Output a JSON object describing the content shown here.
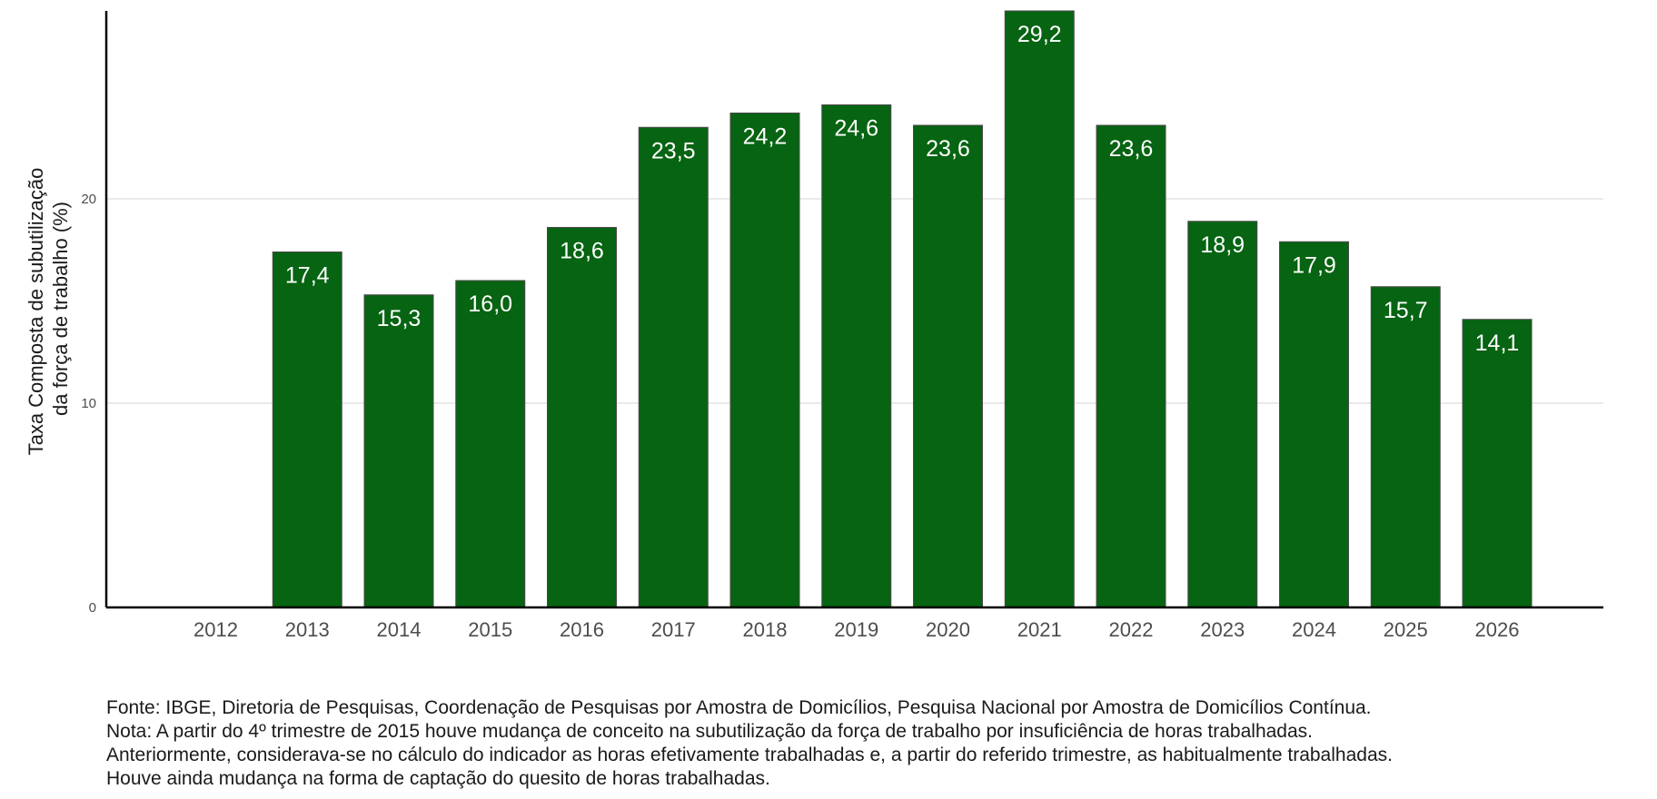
{
  "chart_data": {
    "type": "bar",
    "title": "",
    "xlabel": "",
    "ylabel_lines": [
      "Taxa Composta de subutilização",
      "da força de trabalho (%)"
    ],
    "categories": [
      "2012",
      "2013",
      "2014",
      "2015",
      "2016",
      "2017",
      "2018",
      "2019",
      "2020",
      "2021",
      "2022",
      "2023",
      "2024",
      "2025",
      "2026"
    ],
    "values": [
      null,
      17.4,
      15.3,
      16.0,
      18.6,
      23.5,
      24.2,
      24.6,
      23.6,
      29.2,
      23.6,
      18.9,
      17.9,
      15.7,
      14.1
    ],
    "value_labels": [
      "",
      "17,4",
      "15,3",
      "16,0",
      "18,6",
      "23,5",
      "24,2",
      "24,6",
      "23,6",
      "29,2",
      "23,6",
      "18,9",
      "17,9",
      "15,7",
      "14,1"
    ],
    "ylim": [
      0,
      29.2
    ],
    "yticks": [
      0,
      10,
      20
    ],
    "ytick_labels": [
      "0",
      "10",
      "20"
    ],
    "grid": "horizontal-major",
    "bar_color": "#076412"
  },
  "notes": [
    "Fonte: IBGE, Diretoria de Pesquisas, Coordenação de Pesquisas por Amostra de Domicílios, Pesquisa Nacional por Amostra de Domicílios Contínua.",
    "Nota: A partir do 4º trimestre de 2015 houve mudança de conceito na subutilização da força de trabalho por insuficiência de horas trabalhadas.",
    "Anteriormente, considerava-se no cálculo do indicador as horas efetivamente trabalhadas e, a partir do referido trimestre, as habitualmente trabalhadas.",
    "Houve ainda mudança na forma de captação do quesito de horas trabalhadas."
  ]
}
